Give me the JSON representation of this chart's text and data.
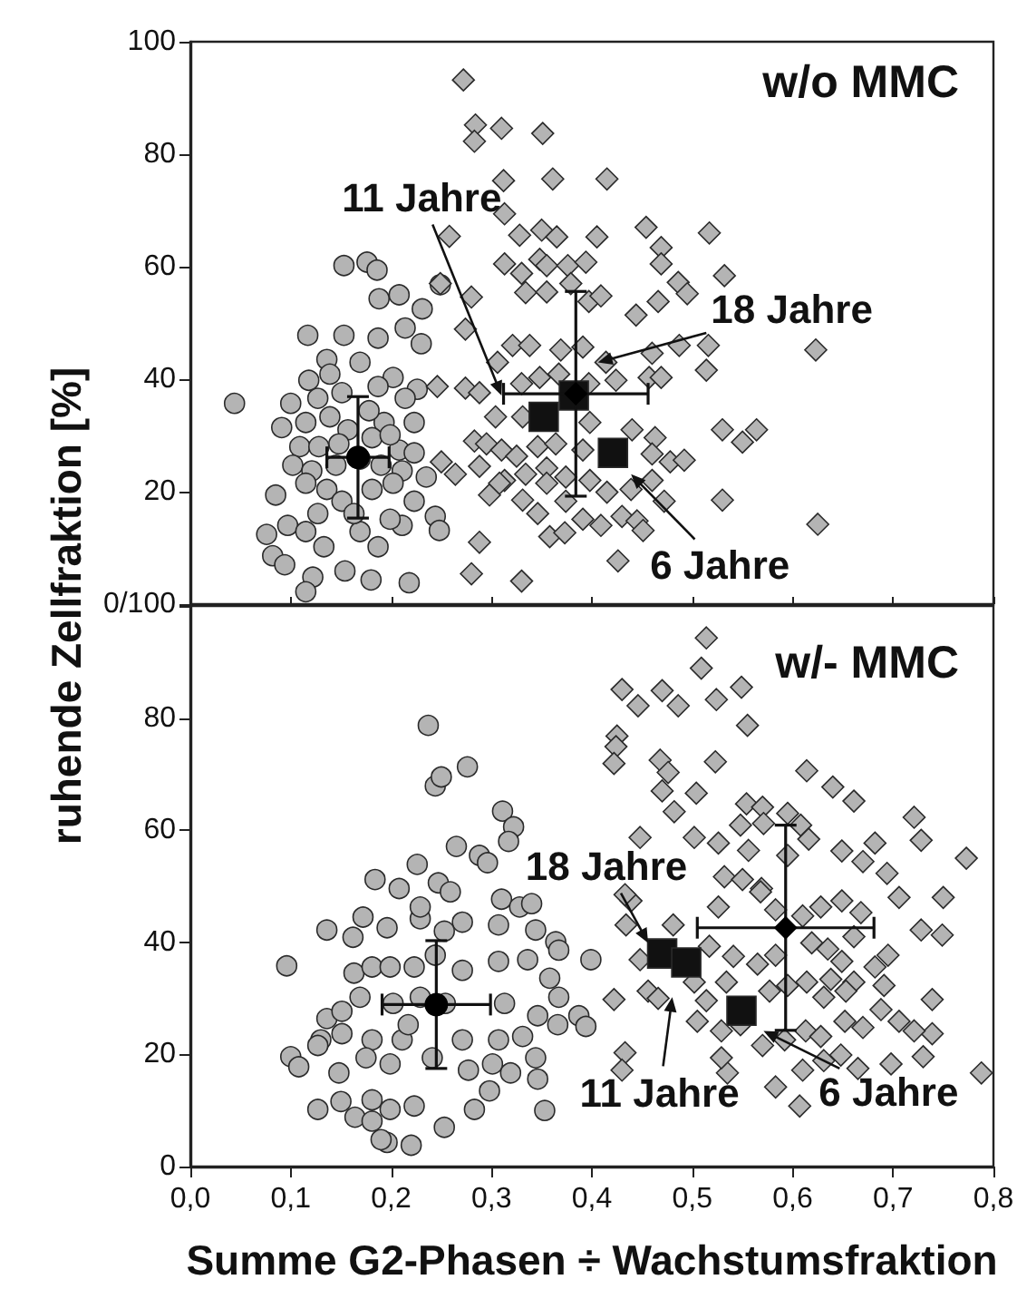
{
  "chart_data": [
    {
      "type": "scatter",
      "title": "w/o MMC",
      "ylabel": "ruhende Zellfraktion [%]",
      "xlim": [
        0,
        0.8
      ],
      "xticks": [
        0,
        0.1,
        0.2,
        0.3,
        0.4,
        0.5,
        0.6,
        0.7,
        0.8
      ],
      "ylim": [
        0,
        100
      ],
      "yticks": [
        {
          "value": 0,
          "label": "0/100"
        },
        20,
        40,
        60,
        80,
        100
      ],
      "tick_labels": "y",
      "grid": false,
      "annotations": [
        {
          "text": "11 Jahre",
          "x": 0.31,
          "y": 37.1
        },
        {
          "text": "18 Jahre",
          "x": 0.406,
          "y": 43
        },
        {
          "text": "6 Jahre",
          "x": 0.439,
          "y": 23.1
        }
      ],
      "series": [
        {
          "type": "scatter",
          "marker": "circle",
          "color": "#b4b4b4",
          "x": [
            0.044,
            0.153,
            0.176,
            0.186,
            0.188,
            0.208,
            0.231,
            0.214,
            0.249,
            0.117,
            0.153,
            0.187,
            0.136,
            0.23,
            0.118,
            0.202,
            0.226,
            0.1,
            0.127,
            0.151,
            0.187,
            0.214,
            0.091,
            0.115,
            0.139,
            0.157,
            0.193,
            0.223,
            0.109,
            0.128,
            0.148,
            0.181,
            0.208,
            0.223,
            0.102,
            0.121,
            0.145,
            0.19,
            0.211,
            0.235,
            0.085,
            0.115,
            0.136,
            0.151,
            0.181,
            0.202,
            0.223,
            0.244,
            0.248,
            0.097,
            0.115,
            0.133,
            0.169,
            0.187,
            0.211,
            0.076,
            0.082,
            0.094,
            0.122,
            0.115,
            0.154,
            0.18,
            0.218,
            0.163,
            0.169,
            0.139,
            0.169,
            0.178,
            0.199,
            0.127,
            0.199
          ],
          "values": [
            35.7,
            60.2,
            60.8,
            59.4,
            54.3,
            55,
            52.5,
            49.1,
            56.8,
            47.8,
            47.8,
            47.3,
            43.5,
            46.3,
            39.8,
            40.3,
            38.2,
            35.7,
            36.6,
            37.6,
            38.7,
            36.6,
            31.4,
            32.3,
            33.3,
            31,
            32.3,
            32.3,
            28,
            28,
            28.5,
            29.6,
            27.4,
            26.9,
            24.7,
            23.7,
            24.7,
            24.7,
            23.7,
            22.6,
            19.4,
            21.5,
            20.4,
            18.3,
            20.4,
            21.5,
            18.3,
            15.6,
            13.1,
            14,
            12.9,
            10.2,
            12.9,
            10.2,
            14,
            12.4,
            8.6,
            7,
            4.8,
            2.2,
            5.9,
            4.3,
            3.8,
            16.1,
            25.8,
            40.9,
            43,
            34.4,
            30.1,
            16.1,
            15.1
          ]
        },
        {
          "type": "scatter",
          "marker": "diamond",
          "color": "#b4b4b4",
          "x": [
            0.272,
            0.284,
            0.283,
            0.31,
            0.351,
            0.312,
            0.361,
            0.415,
            0.313,
            0.258,
            0.328,
            0.35,
            0.365,
            0.405,
            0.454,
            0.469,
            0.517,
            0.313,
            0.33,
            0.348,
            0.355,
            0.376,
            0.394,
            0.469,
            0.486,
            0.495,
            0.532,
            0.249,
            0.28,
            0.334,
            0.355,
            0.379,
            0.397,
            0.409,
            0.444,
            0.466,
            0.274,
            0.321,
            0.338,
            0.369,
            0.391,
            0.414,
            0.46,
            0.487,
            0.516,
            0.514,
            0.623,
            0.625,
            0.306,
            0.33,
            0.348,
            0.367,
            0.397,
            0.424,
            0.457,
            0.469,
            0.246,
            0.274,
            0.288,
            0.304,
            0.331,
            0.398,
            0.44,
            0.463,
            0.53,
            0.55,
            0.564,
            0.283,
            0.295,
            0.31,
            0.325,
            0.346,
            0.364,
            0.391,
            0.46,
            0.478,
            0.492,
            0.25,
            0.264,
            0.288,
            0.313,
            0.334,
            0.355,
            0.374,
            0.398,
            0.415,
            0.439,
            0.46,
            0.298,
            0.308,
            0.331,
            0.346,
            0.355,
            0.374,
            0.391,
            0.409,
            0.43,
            0.445,
            0.451,
            0.472,
            0.53,
            0.358,
            0.373,
            0.288,
            0.426,
            0.28,
            0.33
          ],
          "values": [
            93.2,
            85.2,
            82.3,
            84.6,
            83.7,
            75.3,
            75.6,
            75.6,
            69.4,
            65.4,
            65.6,
            66.5,
            65.3,
            65.3,
            67,
            63.4,
            66,
            60.5,
            58.8,
            61.3,
            60.2,
            60.2,
            60.8,
            60.5,
            57.2,
            55.2,
            58.4,
            57,
            54.6,
            55.4,
            55.5,
            57,
            53.8,
            54.8,
            51.4,
            53.8,
            48.9,
            46,
            46,
            45.2,
            45.7,
            43,
            44.6,
            46,
            46,
            41.6,
            45.2,
            14.2,
            43,
            39.2,
            40.3,
            40.9,
            39.2,
            39.8,
            40.3,
            40.3,
            38.7,
            38.4,
            37.6,
            33.3,
            33.3,
            32.3,
            31,
            29.6,
            31,
            28.8,
            31,
            29,
            28.5,
            27.4,
            26.3,
            28,
            28.5,
            27.4,
            26.7,
            25.3,
            25.6,
            25.3,
            23.1,
            24.5,
            22,
            23.1,
            24.2,
            22.6,
            22,
            19.9,
            20.4,
            22,
            19.4,
            21.5,
            18.5,
            16.1,
            21.5,
            18.3,
            15.1,
            14,
            15.6,
            14.8,
            13.1,
            18.3,
            18.5,
            12,
            12.7,
            11,
            7.7,
            5.4,
            4.1
          ]
        },
        {
          "type": "scatter",
          "marker": "square",
          "color": "#111111",
          "x": [
            0.352,
            0.382,
            0.421
          ],
          "values": [
            33.3,
            37.1,
            26.9
          ]
        },
        {
          "type": "scatter",
          "marker": "circle",
          "color": "#000000",
          "x": [
            0.167
          ],
          "values": [
            26.1
          ],
          "errors": [
            10.8
          ],
          "xerrors": [
            0.031
          ]
        },
        {
          "type": "scatter",
          "marker": "diamond",
          "color": "#000000",
          "x": [
            0.384
          ],
          "values": [
            37.4
          ],
          "errors": [
            18.2
          ],
          "xerrors": [
            0.072
          ]
        }
      ]
    },
    {
      "type": "scatter",
      "title": "w/- MMC",
      "xlabel": "Summe G2-Phasen ÷ Wachstumsfraktion",
      "xlim": [
        0,
        0.8
      ],
      "xticks": [
        {
          "value": 0,
          "label": "0,0"
        },
        {
          "value": 0.1,
          "label": "0,1"
        },
        {
          "value": 0.2,
          "label": "0,2"
        },
        {
          "value": 0.3,
          "label": "0,3"
        },
        {
          "value": 0.4,
          "label": "0,4"
        },
        {
          "value": 0.5,
          "label": "0,5"
        },
        {
          "value": 0.6,
          "label": "0,6"
        },
        {
          "value": 0.7,
          "label": "0,7"
        },
        {
          "value": 0.8,
          "label": "0,8"
        }
      ],
      "ylim": [
        0,
        100
      ],
      "yticks": [
        0,
        20,
        40,
        60,
        80,
        {
          "value": 100,
          "label": null
        }
      ],
      "grid": false,
      "annotations": [
        {
          "text": "18 Jahre",
          "x": 0.456,
          "y": 39.9
        },
        {
          "text": "11 Jahre",
          "x": 0.48,
          "y": 30.2
        },
        {
          "text": "6 Jahre",
          "x": 0.571,
          "y": 24.2
        }
      ],
      "series": [
        {
          "type": "scatter",
          "marker": "circle",
          "color": "#b4b4b4",
          "x": [
            0.237,
            0.244,
            0.25,
            0.276,
            0.311,
            0.322,
            0.317,
            0.265,
            0.288,
            0.296,
            0.226,
            0.184,
            0.208,
            0.247,
            0.259,
            0.31,
            0.328,
            0.34,
            0.172,
            0.136,
            0.162,
            0.196,
            0.229,
            0.271,
            0.307,
            0.344,
            0.364,
            0.367,
            0.399,
            0.096,
            0.163,
            0.181,
            0.223,
            0.271,
            0.307,
            0.336,
            0.358,
            0.367,
            0.366,
            0.387,
            0.394,
            0.136,
            0.151,
            0.169,
            0.202,
            0.254,
            0.313,
            0.346,
            0.13,
            0.151,
            0.181,
            0.211,
            0.271,
            0.307,
            0.331,
            0.1,
            0.108,
            0.127,
            0.148,
            0.175,
            0.199,
            0.241,
            0.277,
            0.301,
            0.319,
            0.346,
            0.344,
            0.127,
            0.15,
            0.164,
            0.181,
            0.199,
            0.223,
            0.253,
            0.283,
            0.298,
            0.353,
            0.181,
            0.196,
            0.22,
            0.19,
            0.244,
            0.229,
            0.253,
            0.199,
            0.217,
            0.229
          ],
          "values": [
            78.7,
            67.9,
            69.5,
            71.3,
            63.4,
            60.6,
            58,
            57.1,
            55.5,
            54.2,
            53.9,
            51.2,
            49.6,
            50.6,
            49,
            47.7,
            46.3,
            46.9,
            44.5,
            42.2,
            40.9,
            42.6,
            44.2,
            43.6,
            43.1,
            42.2,
            40.1,
            38.6,
            36.9,
            35.8,
            34.5,
            35.6,
            35.6,
            35,
            36.6,
            36.9,
            33.6,
            30.2,
            25.3,
            26.9,
            25,
            26.4,
            27.7,
            30.2,
            29.1,
            29.1,
            29.1,
            26.9,
            22.6,
            23.7,
            22.6,
            22.6,
            22.6,
            22.6,
            23.2,
            19.6,
            17.8,
            21.6,
            16.7,
            19.4,
            18.3,
            19.4,
            17.2,
            18.3,
            16.7,
            15.6,
            19.4,
            10.2,
            11.6,
            8.8,
            11.9,
            10.2,
            10.8,
            7,
            10.2,
            13.5,
            10,
            8.1,
            4.3,
            3.8,
            4.8,
            37.7,
            46.3,
            42,
            35.6,
            25.3,
            30.2
          ]
        },
        {
          "type": "scatter",
          "marker": "diamond",
          "color": "#b4b4b4",
          "x": [
            0.514,
            0.509,
            0.43,
            0.446,
            0.47,
            0.486,
            0.524,
            0.549,
            0.555,
            0.425,
            0.424,
            0.422,
            0.468,
            0.476,
            0.47,
            0.482,
            0.504,
            0.523,
            0.614,
            0.64,
            0.661,
            0.721,
            0.728,
            0.773,
            0.75,
            0.749,
            0.728,
            0.739,
            0.739,
            0.73,
            0.788,
            0.698,
            0.665,
            0.631,
            0.648,
            0.61,
            0.607,
            0.583,
            0.535,
            0.529,
            0.433,
            0.43,
            0.422,
            0.456,
            0.466,
            0.448,
            0.434,
            0.439,
            0.448,
            0.502,
            0.526,
            0.548,
            0.554,
            0.57,
            0.571,
            0.595,
            0.608,
            0.616,
            0.595,
            0.556,
            0.532,
            0.55,
            0.569,
            0.649,
            0.67,
            0.682,
            0.694,
            0.706,
            0.668,
            0.649,
            0.628,
            0.61,
            0.583,
            0.568,
            0.526,
            0.517,
            0.541,
            0.565,
            0.583,
            0.619,
            0.635,
            0.649,
            0.682,
            0.695,
            0.691,
            0.661,
            0.638,
            0.614,
            0.595,
            0.577,
            0.534,
            0.502,
            0.514,
            0.505,
            0.529,
            0.548,
            0.57,
            0.592,
            0.613,
            0.628,
            0.652,
            0.67,
            0.688,
            0.706,
            0.721,
            0.653,
            0.631,
            0.481,
            0.433,
            0.661
          ],
          "values": [
            94.3,
            88.9,
            85.1,
            82.2,
            84.9,
            82.2,
            83.3,
            85.5,
            78.7,
            76.8,
            74.9,
            71.9,
            72.5,
            70.3,
            67,
            63.3,
            66.6,
            72.2,
            70.6,
            67.7,
            65.2,
            62.3,
            58.2,
            55,
            48,
            41.3,
            42.2,
            29.8,
            23.7,
            19.6,
            16.7,
            18.3,
            17.5,
            18.9,
            19.9,
            17.2,
            10.8,
            14.2,
            16.7,
            19.4,
            20.3,
            17.2,
            29.8,
            31.3,
            30,
            36.9,
            43.1,
            47.4,
            58.7,
            58.7,
            57.7,
            60.9,
            64.7,
            64.1,
            61.2,
            63,
            60.9,
            58.4,
            55.5,
            56.4,
            51.7,
            51.2,
            49.6,
            56.3,
            54.4,
            57.7,
            52.3,
            48,
            45.3,
            47.4,
            46.3,
            44.7,
            45.8,
            49,
            46.3,
            39.3,
            37.5,
            36.1,
            37.7,
            39.9,
            38.8,
            36.6,
            35.6,
            37.7,
            32.3,
            32.9,
            33.4,
            32.9,
            32.3,
            31.3,
            32.9,
            32.9,
            29.6,
            25.9,
            24.2,
            25.3,
            21.6,
            22.6,
            24.2,
            23.2,
            25.9,
            24.8,
            28,
            25.9,
            24.2,
            31.3,
            30.2,
            43.1,
            48.5,
            41
          ]
        },
        {
          "type": "scatter",
          "marker": "square",
          "color": "#111111",
          "x": [
            0.47,
            0.494,
            0.549
          ],
          "values": [
            38,
            36.4,
            27.8
          ]
        },
        {
          "type": "scatter",
          "marker": "circle",
          "color": "#000000",
          "x": [
            0.245
          ],
          "values": [
            28.9
          ],
          "errors": [
            11.4
          ],
          "xerrors": [
            0.054
          ]
        },
        {
          "type": "scatter",
          "marker": "diamond",
          "color": "#000000",
          "x": [
            0.593
          ],
          "values": [
            42.6
          ],
          "errors": [
            18.3
          ],
          "xerrors": [
            0.088
          ]
        }
      ]
    }
  ]
}
